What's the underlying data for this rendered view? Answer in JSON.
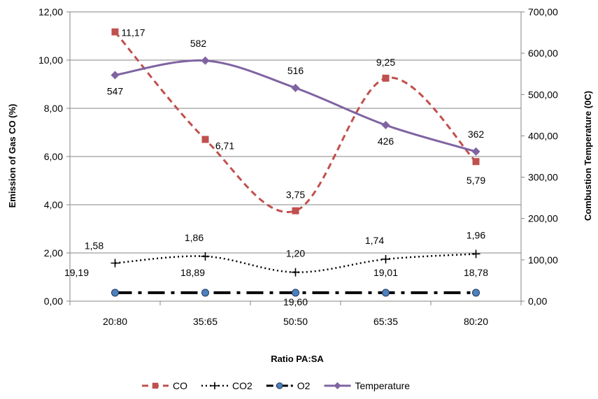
{
  "chart_data": {
    "type": "line",
    "title": "",
    "categories": [
      "20:80",
      "35:65",
      "50:50",
      "65:35",
      "80:20"
    ],
    "xlabel": "Ratio PA:SA",
    "ylabel": "Emission of Gas CO (%)",
    "y2label": "Combustion Temperature (0C)",
    "ylim": [
      0,
      12
    ],
    "y2lim": [
      0,
      700
    ],
    "yticks": [
      "0,00",
      "2,00",
      "4,00",
      "6,00",
      "8,00",
      "10,00",
      "12,00"
    ],
    "y2ticks": [
      "0,00",
      "100,00",
      "200,00",
      "300,00",
      "400,00",
      "500,00",
      "600,00",
      "700,00"
    ],
    "grid": true,
    "legend_position": "bottom",
    "series": [
      {
        "name": "CO",
        "axis": "left",
        "values": [
          11.17,
          6.71,
          3.75,
          9.25,
          5.79
        ],
        "labels": [
          "11,17",
          "6,71",
          "3,75",
          "9,25",
          "5,79"
        ],
        "color": "#c0504d",
        "dash": "dashed",
        "marker": "square",
        "smooth": true
      },
      {
        "name": "CO2",
        "axis": "left",
        "values": [
          1.58,
          1.86,
          1.2,
          1.74,
          1.96
        ],
        "labels": [
          "1,58",
          "1,86",
          "1,20",
          "1,74",
          "1,96"
        ],
        "color": "#000000",
        "dash": "dotted",
        "marker": "plus",
        "smooth": true
      },
      {
        "name": "O2",
        "axis": "left",
        "values": [
          19.19,
          18.89,
          19.6,
          19.01,
          18.78
        ],
        "plotted_level": 0.35,
        "labels": [
          "19,19",
          "18,89",
          "19,60",
          "19,01",
          "18,78"
        ],
        "color": "#000000",
        "marker_color": "#4f81bd",
        "dash": "dashdot",
        "marker": "circle",
        "smooth": false
      },
      {
        "name": "Temperature",
        "axis": "right",
        "values": [
          547,
          582,
          516,
          426,
          362
        ],
        "labels": [
          "547",
          "582",
          "516",
          "426",
          "362"
        ],
        "color": "#8064a2",
        "dash": "solid",
        "marker": "diamond",
        "smooth": true
      }
    ]
  }
}
